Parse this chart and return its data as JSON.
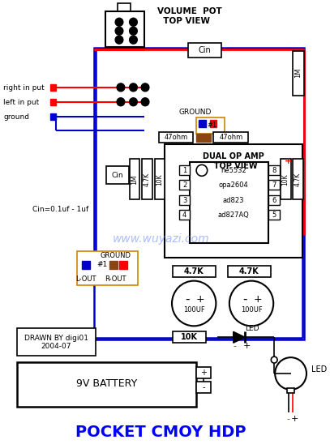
{
  "title": "POCKET CMOY HDP",
  "title_color": "#0000FF",
  "bg_color": "#FFFFFF",
  "volume_pot_label": "VOLUME POT\nTOP VIEW",
  "dual_op_amp_label": "DUAL OP AMP\nTOP VIEW",
  "battery_label": "9V BATTERY",
  "cin_label": "Cin=0.1uf - 1uf",
  "drawn_label": "DRAWN BY digi01\n2004-07",
  "watermark": "www.wuyazi.com",
  "watermark_color": "#6688FF",
  "line_red": "#FF0000",
  "line_blue": "#0000CC",
  "line_black": "#000000",
  "orange_border": "#CC8800"
}
